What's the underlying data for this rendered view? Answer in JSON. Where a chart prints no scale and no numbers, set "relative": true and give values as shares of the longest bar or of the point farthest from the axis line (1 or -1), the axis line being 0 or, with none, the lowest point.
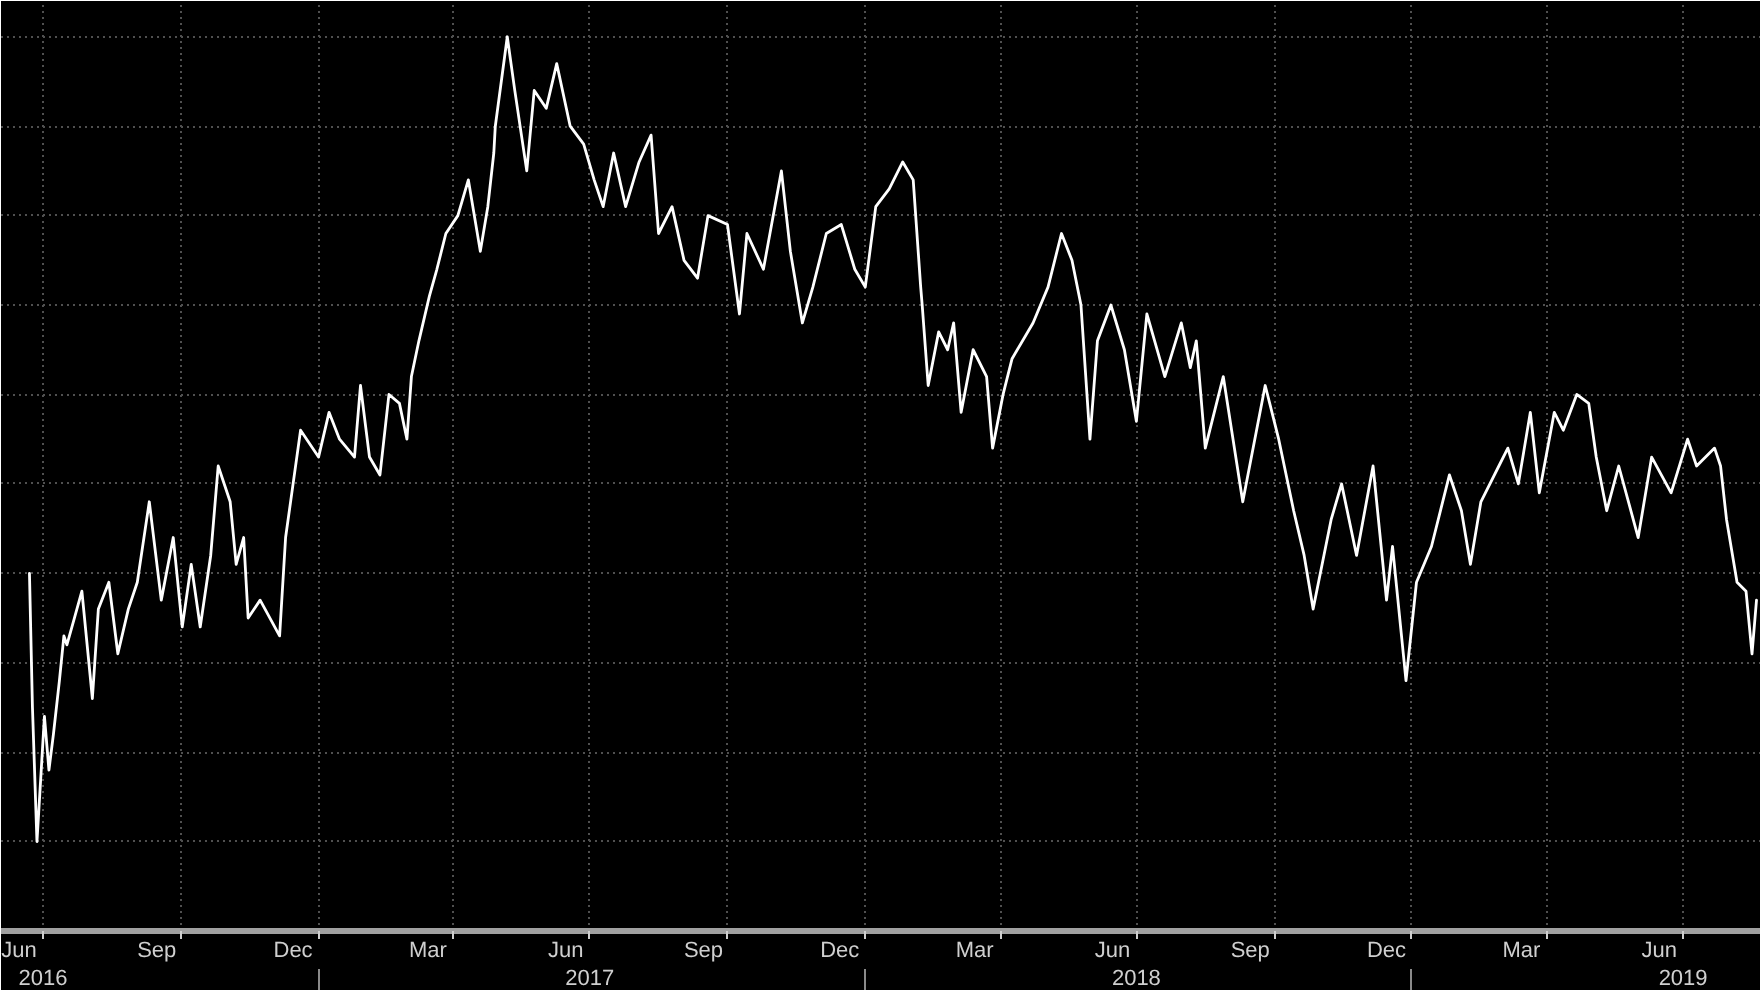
{
  "chart_data": {
    "type": "line",
    "relative": true,
    "grid": true,
    "line_style": "solid",
    "xlim": [
      "2016-06-03",
      "2019-08-22"
    ],
    "xticks": [
      {
        "value": "2016-06-15",
        "label": "Jun"
      },
      {
        "value": "2016-07-01",
        "label": null
      },
      {
        "value": "2016-09-15",
        "label": "Sep"
      },
      {
        "value": "2016-10-01",
        "label": null
      },
      {
        "value": "2016-12-15",
        "label": "Dec"
      },
      {
        "value": "2017-01-01",
        "label": null
      },
      {
        "value": "2017-03-15",
        "label": "Mar"
      },
      {
        "value": "2017-04-01",
        "label": null
      },
      {
        "value": "2017-06-15",
        "label": "Jun"
      },
      {
        "value": "2017-07-01",
        "label": null
      },
      {
        "value": "2017-09-15",
        "label": "Sep"
      },
      {
        "value": "2017-10-01",
        "label": null
      },
      {
        "value": "2017-12-15",
        "label": "Dec"
      },
      {
        "value": "2018-01-01",
        "label": null
      },
      {
        "value": "2018-03-15",
        "label": "Mar"
      },
      {
        "value": "2018-04-01",
        "label": null
      },
      {
        "value": "2018-06-15",
        "label": "Jun"
      },
      {
        "value": "2018-07-01",
        "label": null
      },
      {
        "value": "2018-09-15",
        "label": "Sep"
      },
      {
        "value": "2018-10-01",
        "label": null
      },
      {
        "value": "2018-12-15",
        "label": "Dec"
      },
      {
        "value": "2019-01-01",
        "label": null
      },
      {
        "value": "2019-03-15",
        "label": "Mar"
      },
      {
        "value": "2019-04-01",
        "label": null
      },
      {
        "value": "2019-06-15",
        "label": "Jun"
      },
      {
        "value": "2019-07-01",
        "label": null
      }
    ],
    "x2lim": [
      "2016-06-03",
      "2019-08-22"
    ],
    "x2ticks": [
      {
        "value": "2016-07-01",
        "label": "2016"
      },
      {
        "value": "2017-01-01",
        "label": null
      },
      {
        "value": "2017-07-01",
        "label": "2017"
      },
      {
        "value": "2018-01-01",
        "label": null
      },
      {
        "value": "2018-07-01",
        "label": "2018"
      },
      {
        "value": "2019-01-01",
        "label": null
      },
      {
        "value": "2019-07-01",
        "label": "2019"
      }
    ],
    "x": [
      "2016-06-22",
      "2016-06-24",
      "2016-06-27",
      "2016-07-02",
      "2016-07-05",
      "2016-07-08",
      "2016-07-12",
      "2016-07-15",
      "2016-07-17",
      "2016-07-22",
      "2016-07-27",
      "2016-08-03",
      "2016-08-07",
      "2016-08-14",
      "2016-08-20",
      "2016-08-27",
      "2016-09-02",
      "2016-09-10",
      "2016-09-18",
      "2016-09-26",
      "2016-10-02",
      "2016-10-08",
      "2016-10-14",
      "2016-10-21",
      "2016-10-26",
      "2016-11-03",
      "2016-11-07",
      "2016-11-12",
      "2016-11-15",
      "2016-11-23",
      "2016-12-06",
      "2016-12-10",
      "2016-12-15",
      "2016-12-20",
      "2017-01-01",
      "2017-01-08",
      "2017-01-15",
      "2017-01-25",
      "2017-01-29",
      "2017-02-04",
      "2017-02-11",
      "2017-02-17",
      "2017-02-24",
      "2017-03-01",
      "2017-03-04",
      "2017-03-09",
      "2017-03-16",
      "2017-03-21",
      "2017-03-27",
      "2017-04-04",
      "2017-04-11",
      "2017-04-19",
      "2017-04-24",
      "2017-04-28",
      "2017-04-29",
      "2017-05-07",
      "2017-05-12",
      "2017-05-20",
      "2017-05-25",
      "2017-06-02",
      "2017-06-09",
      "2017-06-18",
      "2017-06-27",
      "2017-07-04",
      "2017-07-10",
      "2017-07-17",
      "2017-07-25",
      "2017-08-03",
      "2017-08-11",
      "2017-08-16",
      "2017-08-25",
      "2017-09-02",
      "2017-09-11",
      "2017-09-18",
      "2017-10-01",
      "2017-10-09",
      "2017-10-14",
      "2017-10-25",
      "2017-11-06",
      "2017-11-12",
      "2017-11-20",
      "2017-11-27",
      "2017-12-06",
      "2017-12-16",
      "2017-12-25",
      "2018-01-01",
      "2018-01-08",
      "2018-01-17",
      "2018-01-26",
      "2018-02-02",
      "2018-02-07",
      "2018-02-08",
      "2018-02-12",
      "2018-02-19",
      "2018-02-25",
      "2018-03-01",
      "2018-03-06",
      "2018-03-14",
      "2018-03-23",
      "2018-03-27",
      "2018-04-03",
      "2018-04-09",
      "2018-04-23",
      "2018-05-03",
      "2018-05-12",
      "2018-05-19",
      "2018-05-25",
      "2018-05-31",
      "2018-06-05",
      "2018-06-14",
      "2018-06-23",
      "2018-07-01",
      "2018-07-08",
      "2018-07-20",
      "2018-07-31",
      "2018-08-06",
      "2018-08-10",
      "2018-08-16",
      "2018-08-28",
      "2018-09-10",
      "2018-09-25",
      "2018-10-04",
      "2018-10-14",
      "2018-10-21",
      "2018-10-27",
      "2018-11-08",
      "2018-11-15",
      "2018-11-25",
      "2018-12-06",
      "2018-12-15",
      "2018-12-19",
      "2018-12-28",
      "2019-01-04",
      "2019-01-14",
      "2019-01-26",
      "2019-02-03",
      "2019-02-09",
      "2019-02-16",
      "2019-02-28",
      "2019-03-06",
      "2019-03-13",
      "2019-03-21",
      "2019-03-27",
      "2019-04-06",
      "2019-04-12",
      "2019-04-21",
      "2019-04-29",
      "2019-05-04",
      "2019-05-11",
      "2019-05-19",
      "2019-06-01",
      "2019-06-10",
      "2019-06-23",
      "2019-07-04",
      "2019-07-10",
      "2019-07-22",
      "2019-07-26",
      "2019-07-30",
      "2019-08-06",
      "2019-08-12",
      "2019-08-16",
      "2019-08-19"
    ],
    "series": [
      {
        "color": "#ffffff",
        "values": [
          0.4,
          0.25,
          0.1,
          0.24,
          0.18,
          0.22,
          0.28,
          0.33,
          0.32,
          0.35,
          0.38,
          0.26,
          0.36,
          0.39,
          0.31,
          0.36,
          0.39,
          0.48,
          0.37,
          0.44,
          0.34,
          0.41,
          0.34,
          0.42,
          0.52,
          0.48,
          0.41,
          0.44,
          0.35,
          0.37,
          0.33,
          0.44,
          0.5,
          0.56,
          0.53,
          0.58,
          0.55,
          0.53,
          0.61,
          0.53,
          0.51,
          0.6,
          0.59,
          0.55,
          0.62,
          0.66,
          0.71,
          0.74,
          0.78,
          0.8,
          0.84,
          0.76,
          0.81,
          0.87,
          0.9,
          1.0,
          0.94,
          0.85,
          0.94,
          0.92,
          0.97,
          0.9,
          0.88,
          0.84,
          0.81,
          0.87,
          0.81,
          0.86,
          0.89,
          0.78,
          0.81,
          0.75,
          0.73,
          0.8,
          0.79,
          0.69,
          0.78,
          0.74,
          0.85,
          0.76,
          0.68,
          0.72,
          0.78,
          0.79,
          0.74,
          0.72,
          0.81,
          0.83,
          0.86,
          0.84,
          0.72,
          0.7,
          0.61,
          0.67,
          0.65,
          0.68,
          0.58,
          0.65,
          0.62,
          0.54,
          0.6,
          0.64,
          0.68,
          0.72,
          0.78,
          0.75,
          0.7,
          0.55,
          0.66,
          0.7,
          0.65,
          0.57,
          0.69,
          0.62,
          0.68,
          0.63,
          0.66,
          0.54,
          0.62,
          0.48,
          0.61,
          0.55,
          0.47,
          0.42,
          0.36,
          0.46,
          0.5,
          0.42,
          0.52,
          0.37,
          0.43,
          0.28,
          0.39,
          0.43,
          0.51,
          0.47,
          0.41,
          0.48,
          0.52,
          0.54,
          0.5,
          0.58,
          0.49,
          0.58,
          0.56,
          0.6,
          0.59,
          0.53,
          0.47,
          0.52,
          0.44,
          0.53,
          0.49,
          0.55,
          0.52,
          0.54,
          0.52,
          0.46,
          0.39,
          0.38,
          0.31,
          0.37
        ]
      }
    ]
  }
}
